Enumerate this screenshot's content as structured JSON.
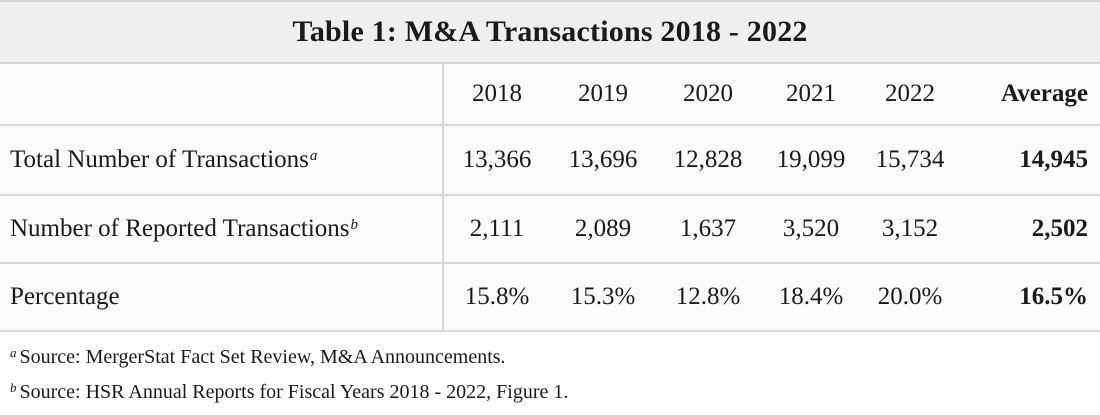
{
  "title": "Table 1: M&A Transactions 2018 - 2022",
  "columns": [
    "2018",
    "2019",
    "2020",
    "2021",
    "2022",
    "Average"
  ],
  "rows": [
    {
      "label": "Total Number of Transactions",
      "marker": "a",
      "values": [
        "13,366",
        "13,696",
        "12,828",
        "19,099",
        "15,734"
      ],
      "average": "14,945"
    },
    {
      "label": "Number of Reported Transactions",
      "marker": "b",
      "values": [
        "2,111",
        "2,089",
        "1,637",
        "3,520",
        "3,152"
      ],
      "average": "2,502"
    },
    {
      "label": "Percentage",
      "marker": "",
      "values": [
        "15.8%",
        "15.3%",
        "12.8%",
        "18.4%",
        "20.0%"
      ],
      "average": "16.5%"
    }
  ],
  "notes": [
    {
      "marker": "a",
      "text": "Source: MergerStat Fact Set Review, M&A Announcements."
    },
    {
      "marker": "b",
      "text": "Source: HSR Annual Reports for Fiscal Years 2018 - 2022, Figure 1."
    }
  ]
}
